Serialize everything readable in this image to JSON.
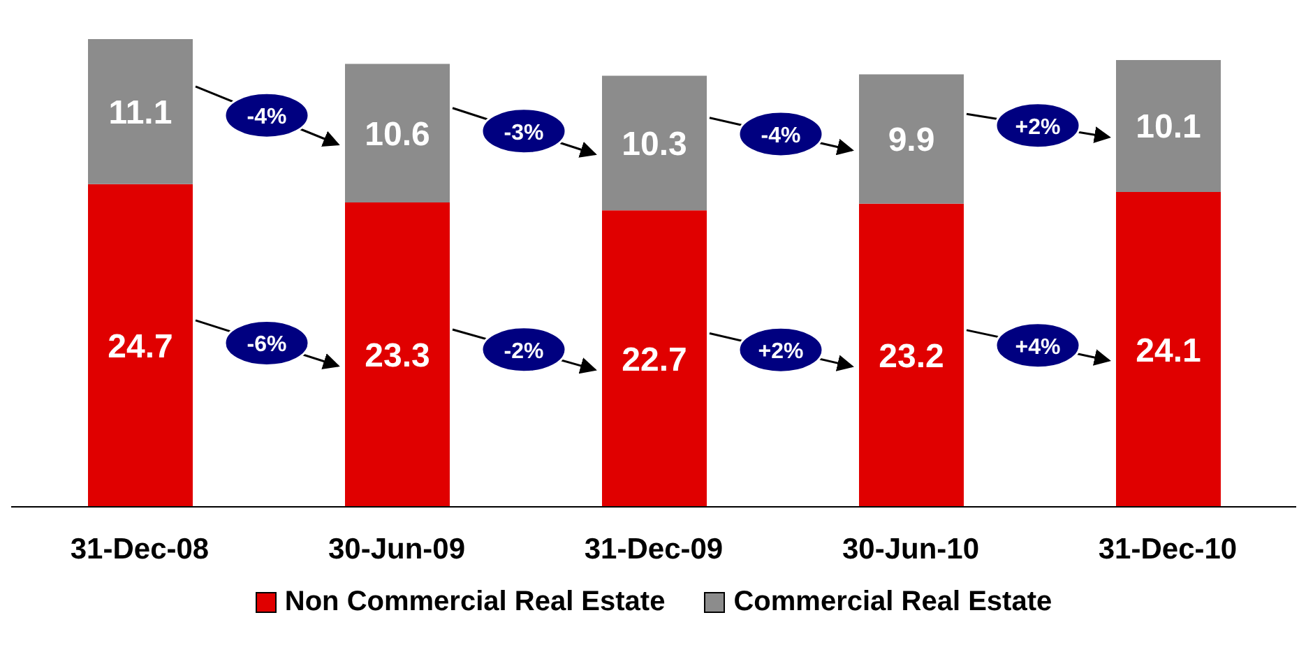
{
  "chart_data": {
    "type": "bar",
    "stacked": true,
    "categories": [
      "31-Dec-08",
      "30-Jun-09",
      "31-Dec-09",
      "30-Jun-10",
      "31-Dec-10"
    ],
    "series": [
      {
        "name": "Non Commercial Real Estate",
        "color": "#e00000",
        "values": [
          24.7,
          23.3,
          22.7,
          23.2,
          24.1
        ]
      },
      {
        "name": "Commercial Real Estate",
        "color": "#8c8c8c",
        "values": [
          11.1,
          10.6,
          10.3,
          9.9,
          10.1
        ]
      }
    ],
    "data_labels": true,
    "legend": "bottom",
    "annotations": [
      "-4%",
      "-3%",
      "-4%",
      "+2%",
      "-6%",
      "-2%",
      "+2%",
      "+4%"
    ]
  }
}
